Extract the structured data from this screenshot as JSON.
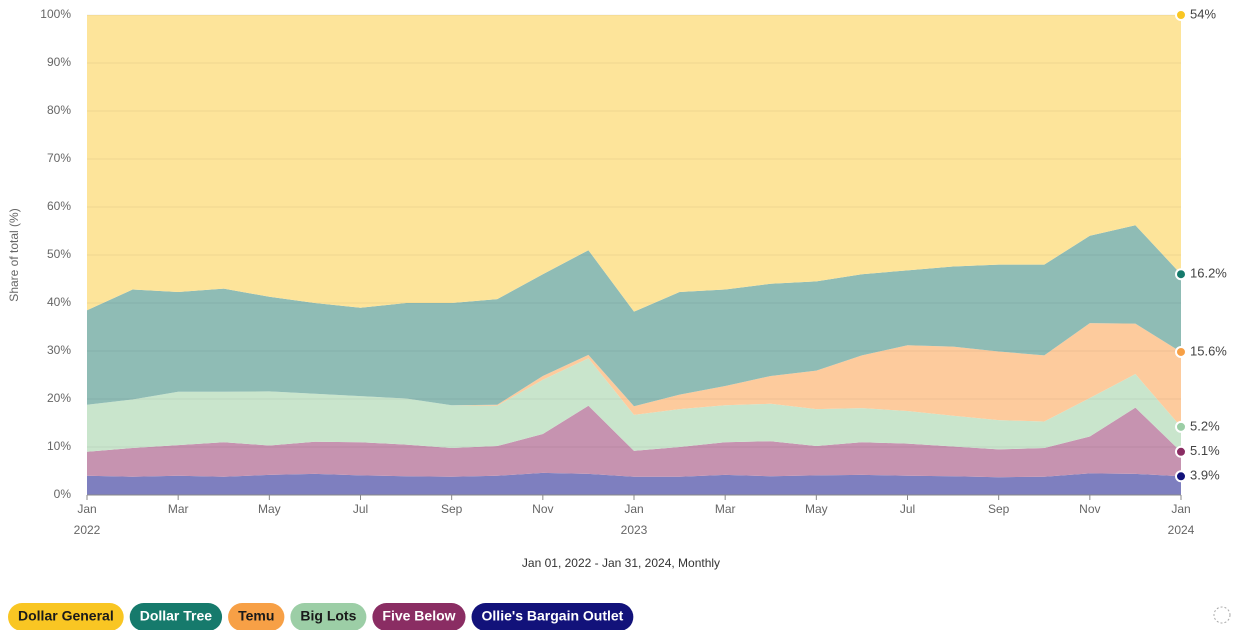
{
  "chart_data": {
    "type": "stacked_area",
    "y_label": "Share of total (%)",
    "x_label": "Jan 01, 2022 - Jan 31, 2024, Monthly",
    "categories": [
      "Jan",
      null,
      "Mar",
      null,
      "May",
      null,
      "Jul",
      null,
      "Sep",
      null,
      "Nov",
      null,
      "Jan",
      null,
      "Mar",
      null,
      "May",
      null,
      "Jul",
      null,
      "Sep",
      null,
      "Nov",
      null,
      "Jan"
    ],
    "category_years": [
      "2022",
      null,
      null,
      null,
      null,
      null,
      null,
      null,
      null,
      null,
      null,
      null,
      "2023",
      null,
      null,
      null,
      null,
      null,
      null,
      null,
      null,
      null,
      null,
      null,
      "2024"
    ],
    "ylim": [
      0,
      100
    ],
    "yticks": [
      {
        "value": 0,
        "label": "0%"
      },
      {
        "value": 10,
        "label": "10%"
      },
      {
        "value": 20,
        "label": "20%"
      },
      {
        "value": 30,
        "label": "30%"
      },
      {
        "value": 40,
        "label": "40%"
      },
      {
        "value": 50,
        "label": "50%"
      },
      {
        "value": 60,
        "label": "60%"
      },
      {
        "value": 70,
        "label": "70%"
      },
      {
        "value": 80,
        "label": "80%"
      },
      {
        "value": 90,
        "label": "90%"
      },
      {
        "value": 100,
        "label": "100%"
      }
    ],
    "grid": true,
    "series": [
      {
        "name": "Ollie's Bargain Outlet",
        "color": "#12127a",
        "area_color": "#7e7fbf",
        "text_color": "#ffffff",
        "end_label": "3.9%",
        "values": [
          4,
          3.8,
          4,
          3.8,
          4.2,
          4.4,
          4.1,
          3.9,
          3.8,
          4,
          4.6,
          4.4,
          3.8,
          3.8,
          4.2,
          3.9,
          4.1,
          4.2,
          4,
          3.9,
          3.7,
          3.8,
          4.5,
          4.4,
          3.9
        ]
      },
      {
        "name": "Five Below",
        "color": "#8a2d63",
        "area_color": "#c693b0",
        "text_color": "#ffffff",
        "end_label": "5.1%",
        "values": [
          5,
          6,
          6.4,
          7.2,
          6.1,
          6.7,
          6.9,
          6.6,
          6,
          6.2,
          8.1,
          14.2,
          5.4,
          6.2,
          6.8,
          7.3,
          6.1,
          6.8,
          6.7,
          6.2,
          5.8,
          6,
          7.7,
          13.8,
          5.1
        ]
      },
      {
        "name": "Big Lots",
        "color": "#9ccea6",
        "area_color": "#c9e5cc",
        "text_color": "#1a1a1a",
        "end_label": "5.2%",
        "values": [
          9.8,
          10.1,
          11.1,
          10.5,
          11.3,
          10,
          9.6,
          9.6,
          8.9,
          8.4,
          11.3,
          9.9,
          7.5,
          7.9,
          7.7,
          7.8,
          7.7,
          7.1,
          6.8,
          6.4,
          6.1,
          5.5,
          8,
          7,
          5.2
        ]
      },
      {
        "name": "Temu",
        "color": "#f7a046",
        "area_color": "#fdcb9d",
        "text_color": "#1a1a1a",
        "end_label": "15.6%",
        "values": [
          0,
          0,
          0,
          0,
          0,
          0,
          0,
          0,
          0,
          0.2,
          0.8,
          0.7,
          1.8,
          3,
          4,
          5.8,
          8,
          11,
          13.7,
          14.4,
          14.3,
          13.8,
          15.6,
          10.5,
          15.6
        ]
      },
      {
        "name": "Dollar Tree",
        "color": "#167a6c",
        "area_color": "#8fbcb5",
        "text_color": "#ffffff",
        "end_label": "16.2%",
        "values": [
          19.7,
          22.9,
          20.8,
          21.5,
          19.7,
          18.9,
          18.4,
          19.9,
          21.3,
          22,
          21.2,
          21.8,
          19.7,
          21.4,
          20.1,
          19.2,
          18.6,
          16.9,
          15.6,
          16.7,
          18.1,
          18.9,
          18.2,
          20.5,
          16.2
        ]
      },
      {
        "name": "Dollar General",
        "color": "#f9c623",
        "area_color": "#fde49a",
        "text_color": "#1a1a1a",
        "end_label": "54%",
        "values": [
          61.5,
          57.2,
          57.7,
          57,
          58.7,
          60,
          61,
          60,
          60,
          59.2,
          54,
          49,
          61.8,
          57.7,
          57.2,
          56,
          55.5,
          54,
          53.2,
          52.4,
          52,
          52,
          46,
          43.8,
          54
        ]
      }
    ],
    "legend_order": [
      5,
      4,
      3,
      2,
      1,
      0
    ]
  }
}
